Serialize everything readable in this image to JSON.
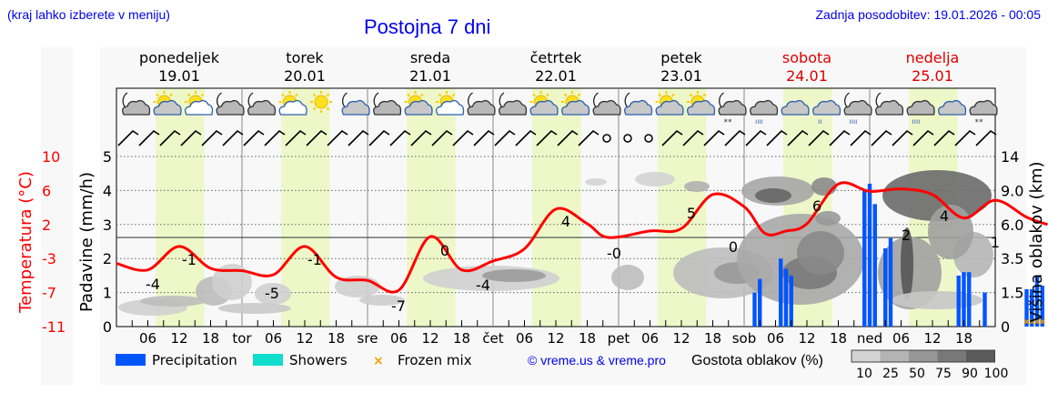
{
  "header": {
    "region_hint": "(kraj lahko izberete v meniju)",
    "title": "Postojna 7 dni",
    "last_update": "Zadnja posodobitev: 19.01.2026 - 00:05"
  },
  "days": [
    {
      "name": "ponedeljek",
      "date": "19.01",
      "weekend": false,
      "short": ""
    },
    {
      "name": "torek",
      "date": "20.01",
      "weekend": false,
      "short": "tor"
    },
    {
      "name": "sreda",
      "date": "21.01",
      "weekend": false,
      "short": "sre"
    },
    {
      "name": "četrtek",
      "date": "22.01",
      "weekend": false,
      "short": "čet"
    },
    {
      "name": "petek",
      "date": "23.01",
      "weekend": false,
      "short": "pet"
    },
    {
      "name": "sobota",
      "date": "24.01",
      "weekend": true,
      "short": "sob"
    },
    {
      "name": "nedelja",
      "date": "25.01",
      "weekend": true,
      "short": "ned"
    }
  ],
  "weather_icons": [
    "night-cloudy",
    "day-partly-cloudy",
    "day-sunny-few-clouds",
    "night-cloudy",
    "night-cloudy",
    "day-sunny-few-clouds",
    "day-sunny",
    "night-few-clouds",
    "night-cloudy",
    "day-partly-cloudy",
    "day-sunny-few-clouds",
    "night-cloudy",
    "night-cloudy",
    "day-partly-cloudy",
    "day-partly-cloudy",
    "night-cloudy",
    "night-few-clouds",
    "day-partly-cloudy",
    "day-partly-cloudy",
    "night-snow",
    "cloudy-rain",
    "cloudy",
    "cloudy-light-rain",
    "night-rain",
    "night-cloudy",
    "cloudy-rain",
    "cloudy",
    "cloudy-snow"
  ],
  "legend": {
    "precipitation": "Precipitation",
    "showers": "Showers",
    "frozen_mix": "Frozen mix",
    "copyright": "© vreme.us & vreme.pro",
    "cloud_density_title": "Gostota oblakov (%)",
    "cloud_density_ticks": [
      "10",
      "25",
      "50",
      "75",
      "90",
      "100"
    ],
    "colors": {
      "precipitation": "#0055ff",
      "showers": "#11ddcc",
      "frozen_mix": "#f0a000"
    }
  },
  "axes": {
    "left_temp_label": "Temperatura (°C)",
    "left_temp_ticks": [
      "10",
      "6",
      "2",
      "-3",
      "-7",
      "-11"
    ],
    "left_precip_label": "Padavine (mm/h)",
    "left_precip_ticks": [
      "5",
      "4",
      "3",
      "2",
      "1",
      "0"
    ],
    "right_label": "Višina oblakov (km)",
    "right_ticks": [
      "14",
      "9.0",
      "6.0",
      "3.5",
      "1.5",
      "0"
    ],
    "hour_ticks": [
      "06",
      "12",
      "18"
    ]
  },
  "chart_data": {
    "type": "line",
    "title": "Postojna 7 dni",
    "xlabel": "",
    "ylabel": "Padavine (mm/h) / Temperatura (°C)",
    "y2label": "Višina oblakov (km)",
    "ylim": [
      0,
      5
    ],
    "temp_range": [
      -11,
      10
    ],
    "grid": true,
    "x_days": [
      "19.01",
      "20.01",
      "21.01",
      "22.01",
      "23.01",
      "24.01",
      "25.01"
    ],
    "series": [
      {
        "name": "Temperatura (°C)",
        "color": "#ff0000",
        "points_hour_temp": [
          [
            0,
            -3.2
          ],
          [
            6,
            -4.0
          ],
          [
            12,
            -1.1
          ],
          [
            18,
            -3.8
          ],
          [
            24,
            -4.1
          ],
          [
            30,
            -4.6
          ],
          [
            36,
            -1.1
          ],
          [
            42,
            -4.9
          ],
          [
            48,
            -5.3
          ],
          [
            54,
            -6.5
          ],
          [
            60,
            0.1
          ],
          [
            66,
            -4.0
          ],
          [
            72,
            -2.9
          ],
          [
            78,
            -1.4
          ],
          [
            84,
            3.5
          ],
          [
            90,
            1.7
          ],
          [
            94,
            0.0
          ],
          [
            102,
            0.8
          ],
          [
            108,
            1.1
          ],
          [
            114,
            5.3
          ],
          [
            120,
            3.8
          ],
          [
            124,
            0.5
          ],
          [
            128,
            0.8
          ],
          [
            132,
            1.7
          ],
          [
            138,
            6.6
          ],
          [
            144,
            5.7
          ],
          [
            150,
            6.0
          ],
          [
            156,
            5.3
          ],
          [
            162,
            2.4
          ],
          [
            168,
            4.6
          ],
          [
            174,
            2.5
          ],
          [
            178,
            1.6
          ]
        ],
        "labels": [
          {
            "hour": 6,
            "text": "-4"
          },
          {
            "hour": 13,
            "text": "-1"
          },
          {
            "hour": 29,
            "text": "-5"
          },
          {
            "hour": 37,
            "text": "-1"
          },
          {
            "hour": 53,
            "text": "-7"
          },
          {
            "hour": 61,
            "text": "0"
          },
          {
            "hour": 77,
            "text": "-4"
          },
          {
            "hour": 85,
            "text": "4"
          },
          {
            "hour": 104,
            "text": "-0"
          },
          {
            "hour": 109,
            "text": "5"
          },
          {
            "hour": 123,
            "text": "0"
          },
          {
            "hour": 136,
            "text": "6"
          },
          {
            "hour": 160,
            "text": "2"
          },
          {
            "hour": 170,
            "text": "4"
          },
          {
            "hour": 179,
            "text": "1"
          }
        ]
      },
      {
        "name": "Precipitation (mm/h)",
        "color": "#0055ff",
        "bars_hour_value": [
          [
            122,
            1.0
          ],
          [
            123,
            1.4
          ],
          [
            127,
            2.0
          ],
          [
            128,
            1.7
          ],
          [
            129,
            1.5
          ],
          [
            143,
            4.0
          ],
          [
            144,
            4.2
          ],
          [
            145,
            3.6
          ],
          [
            147,
            2.3
          ],
          [
            148,
            2.6
          ],
          [
            161,
            1.5
          ],
          [
            162,
            1.6
          ],
          [
            163,
            1.6
          ],
          [
            166,
            1.0
          ],
          [
            174,
            1.1
          ],
          [
            175,
            1.1
          ],
          [
            176,
            1.5
          ],
          [
            177,
            1.2
          ]
        ]
      }
    ],
    "frozen_mix_hours": [
      174,
      175,
      176,
      177
    ],
    "legend": [
      "Precipitation",
      "Showers",
      "Frozen mix"
    ],
    "cloud_density_scale": [
      10,
      25,
      50,
      75,
      90,
      100
    ]
  }
}
